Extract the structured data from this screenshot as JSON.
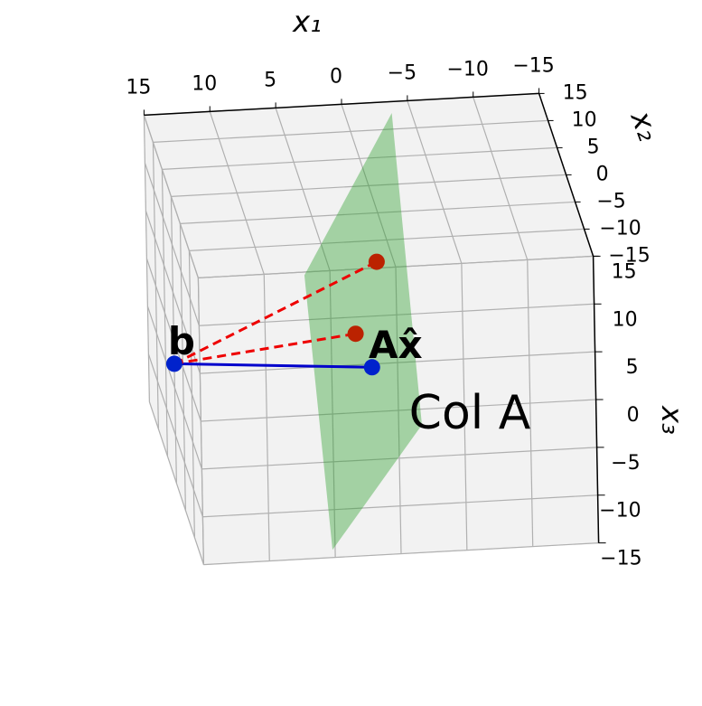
{
  "chart_data": {
    "type": "scatter3d",
    "xlabel": "x₁",
    "ylabel": "x₂",
    "zlabel": "x₃",
    "xlim": [
      -15,
      15
    ],
    "ylim": [
      -15,
      15
    ],
    "zlim": [
      -15,
      15
    ],
    "xticks": [
      {
        "value": -15,
        "label": "−15"
      },
      {
        "value": -10,
        "label": "−10"
      },
      {
        "value": -5,
        "label": "−5"
      },
      0,
      5,
      10,
      15
    ],
    "yticks": [
      {
        "value": -15,
        "label": "−15"
      },
      {
        "value": -10,
        "label": "−10"
      },
      {
        "value": -5,
        "label": "−5"
      },
      0,
      5,
      10,
      15
    ],
    "zticks": [
      {
        "value": -15,
        "label": "−15"
      },
      {
        "value": -10,
        "label": "−10"
      },
      {
        "value": -5,
        "label": "−5"
      },
      0,
      5,
      10,
      15
    ],
    "grid": true,
    "plane": {
      "label": "Col A",
      "color": "#2ca02c",
      "alpha": 0.4,
      "x": [
        -3.8,
        5.0,
        5.2,
        -3.7
      ],
      "y": [
        15,
        0,
        -15,
        0
      ],
      "z": [
        13.8,
        6.0,
        -14.2,
        -10.3
      ]
    },
    "points": [
      {
        "name": "b",
        "color": "#0022cc",
        "x": 15,
        "y": 0,
        "z": -2.5
      },
      {
        "name": "Ax̂",
        "color": "#0022cc",
        "x": 0,
        "y": 0,
        "z": -4,
        "link": "solid",
        "link_color": "#0000cc"
      },
      {
        "color": "#bb2200",
        "x": -0.5,
        "y": 0,
        "z": 7,
        "link": "dashed",
        "link_color": "#ee0000"
      },
      {
        "color": "#bb2200",
        "x": 1.2,
        "y": 0,
        "z": -0.4,
        "link": "dashed",
        "link_color": "#ee0000"
      }
    ]
  }
}
